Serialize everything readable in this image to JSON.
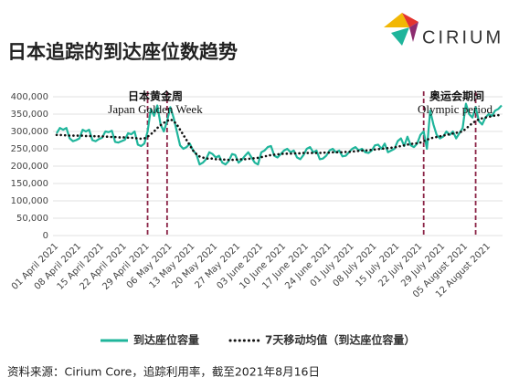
{
  "chart_data": {
    "type": "line",
    "title": "日本追踪的到达座位数趋势",
    "logo": "CIRIUM",
    "source": "资料来源：Cirium Core，追踪利用率，截至2021年8月16日",
    "annotations": [
      "日本黄金周",
      "Japan Golden Week",
      "奥运会期间",
      "Olympic period"
    ],
    "categories": [
      "01 April 2021",
      null,
      null,
      null,
      null,
      null,
      null,
      "08 April 2021",
      null,
      null,
      null,
      null,
      null,
      null,
      "15 April 2021",
      null,
      null,
      null,
      null,
      null,
      null,
      "22 April 2021",
      null,
      null,
      null,
      null,
      null,
      null,
      "29 April 2021",
      null,
      null,
      null,
      null,
      null,
      null,
      "06 May 2021",
      null,
      null,
      null,
      null,
      null,
      null,
      "13 May 2021",
      null,
      null,
      null,
      null,
      null,
      null,
      "20 May 2021",
      null,
      null,
      null,
      null,
      null,
      null,
      "27 May 2021",
      null,
      null,
      null,
      null,
      null,
      null,
      "03 June 2021",
      null,
      null,
      null,
      null,
      null,
      null,
      "10 June 2021",
      null,
      null,
      null,
      null,
      null,
      null,
      "17 June 2021",
      null,
      null,
      null,
      null,
      null,
      null,
      "24 June 2021",
      null,
      null,
      null,
      null,
      null,
      null,
      "01 July 2021",
      null,
      null,
      null,
      null,
      null,
      null,
      "08 July 2021",
      null,
      null,
      null,
      null,
      null,
      null,
      "15 July 2021",
      null,
      null,
      null,
      null,
      null,
      null,
      "22 July 2021",
      null,
      null,
      null,
      null,
      null,
      null,
      "29 July 2021",
      null,
      null,
      null,
      null,
      null,
      null,
      "05 August 2021",
      null,
      null,
      null,
      null,
      null,
      null,
      "12 August 2021",
      null,
      null,
      null,
      null
    ],
    "series": [
      {
        "name": "到达座位容量",
        "color": "#1fb59b",
        "style": "solid",
        "values": [
          295000,
          310000,
          305000,
          310000,
          280000,
          272000,
          275000,
          280000,
          305000,
          300000,
          305000,
          275000,
          272000,
          278000,
          282000,
          300000,
          298000,
          302000,
          270000,
          268000,
          272000,
          276000,
          295000,
          292000,
          300000,
          262000,
          258000,
          265000,
          300000,
          365000,
          345000,
          375000,
          320000,
          300000,
          330000,
          370000,
          340000,
          300000,
          260000,
          250000,
          255000,
          265000,
          245000,
          235000,
          205000,
          210000,
          220000,
          240000,
          235000,
          225000,
          230000,
          210000,
          205000,
          215000,
          235000,
          232000,
          210000,
          218000,
          230000,
          240000,
          225000,
          210000,
          205000,
          240000,
          245000,
          255000,
          258000,
          230000,
          225000,
          235000,
          245000,
          250000,
          240000,
          245000,
          225000,
          220000,
          232000,
          250000,
          255000,
          240000,
          245000,
          220000,
          222000,
          230000,
          245000,
          250000,
          240000,
          245000,
          228000,
          230000,
          240000,
          250000,
          255000,
          245000,
          250000,
          240000,
          238000,
          245000,
          260000,
          262000,
          250000,
          265000,
          240000,
          245000,
          250000,
          272000,
          280000,
          258000,
          285000,
          260000,
          255000,
          265000,
          290000,
          300000,
          250000,
          360000,
          320000,
          290000,
          280000,
          285000,
          300000,
          290000,
          300000,
          280000,
          295000,
          310000,
          380000,
          350000,
          340000,
          370000,
          330000,
          320000,
          340000,
          350000,
          345000,
          360000,
          365000,
          375000
        ]
      },
      {
        "name": "7天移动均值（到达座位容量）",
        "color": "#111111",
        "style": "dotted",
        "values": [
          290000,
          290000,
          289000,
          289000,
          288000,
          288000,
          288000,
          288000,
          288000,
          287000,
          287000,
          287000,
          286000,
          286000,
          286000,
          285000,
          285000,
          284000,
          284000,
          283000,
          283000,
          283000,
          282000,
          282000,
          281000,
          280000,
          279000,
          280000,
          285000,
          292000,
          300000,
          310000,
          318000,
          325000,
          330000,
          335000,
          330000,
          320000,
          305000,
          290000,
          275000,
          260000,
          245000,
          235000,
          228000,
          225000,
          222000,
          222000,
          222000,
          220000,
          220000,
          219000,
          219000,
          218000,
          218000,
          219000,
          219000,
          220000,
          220000,
          221000,
          222000,
          223000,
          224000,
          226000,
          228000,
          230000,
          232000,
          233000,
          234000,
          235000,
          236000,
          236000,
          236000,
          237000,
          237000,
          237000,
          238000,
          238000,
          238000,
          238000,
          238000,
          238000,
          239000,
          239000,
          239000,
          240000,
          240000,
          240000,
          240000,
          241000,
          241000,
          242000,
          243000,
          244000,
          245000,
          245000,
          246000,
          247000,
          248000,
          249000,
          250000,
          251000,
          252000,
          253000,
          254000,
          256000,
          258000,
          260000,
          262000,
          264000,
          265000,
          266000,
          268000,
          272000,
          276000,
          280000,
          282000,
          284000,
          286000,
          288000,
          290000,
          292000,
          294000,
          296000,
          298000,
          300000,
          308000,
          316000,
          324000,
          330000,
          335000,
          338000,
          340000,
          342000,
          344000,
          346000,
          347000,
          345000
        ]
      }
    ],
    "ylim": [
      0,
      400000
    ],
    "yticks": [
      0,
      {
        "value": 50000,
        "label": "50,000"
      },
      {
        "value": 100000,
        "label": "100,000"
      },
      {
        "value": 150000,
        "label": "150,000"
      },
      {
        "value": 200000,
        "label": "200,000"
      },
      {
        "value": 250000,
        "label": "250,000"
      },
      {
        "value": 300000,
        "label": "300,000"
      },
      {
        "value": 350000,
        "label": "350,000"
      },
      {
        "value": 400000,
        "label": "400,000"
      }
    ],
    "grid": true
  }
}
